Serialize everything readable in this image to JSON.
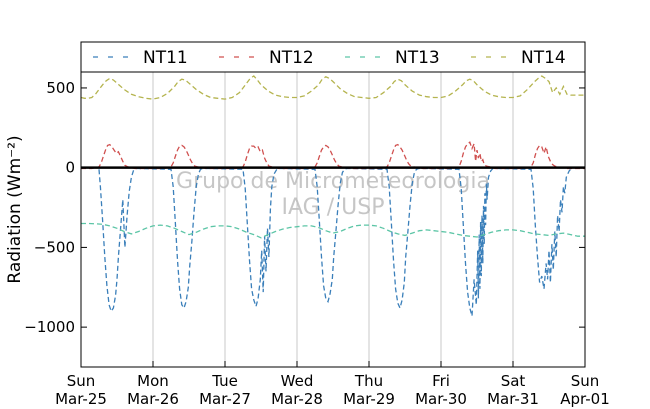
{
  "chart_data": {
    "type": "line",
    "ylabel": "Radiation (Wm⁻²)",
    "ylim": [
      -1250,
      600
    ],
    "xlim": [
      0,
      7
    ],
    "yticks": [
      500,
      0,
      -500,
      -1000
    ],
    "xticks": [
      {
        "x": 0,
        "day": "Sun",
        "date": "Mar-25"
      },
      {
        "x": 1,
        "day": "Mon",
        "date": "Mar-26"
      },
      {
        "x": 2,
        "day": "Tue",
        "date": "Mar-27"
      },
      {
        "x": 3,
        "day": "Wed",
        "date": "Mar-28"
      },
      {
        "x": 4,
        "day": "Thu",
        "date": "Mar-29"
      },
      {
        "x": 5,
        "day": "Fri",
        "date": "Mar-30"
      },
      {
        "x": 6,
        "day": "Sat",
        "date": "Mar-31"
      },
      {
        "x": 7,
        "day": "Sun",
        "date": "Apr-01"
      }
    ],
    "grid": "vertical",
    "legend": {
      "position": "top",
      "columns": 4
    },
    "watermark": [
      "Grupo de Micrometeorologia",
      "IAG / USP"
    ],
    "zero_line": true,
    "series": [
      {
        "name": "NT11",
        "color": "#3a7fba",
        "x": [
          0.25,
          0.27,
          0.3,
          0.33,
          0.36,
          0.39,
          0.42,
          0.45,
          0.48,
          0.5,
          0.52,
          0.55,
          0.58,
          0.61,
          0.64,
          0.67,
          0.7,
          0.73,
          0.76,
          0.8,
          1.25,
          1.28,
          1.31,
          1.34,
          1.37,
          1.4,
          1.43,
          1.46,
          1.49,
          1.51,
          1.54,
          1.57,
          1.6,
          1.63,
          1.66,
          1.69,
          1.72,
          1.76,
          1.8,
          2.25,
          2.28,
          2.31,
          2.34,
          2.37,
          2.4,
          2.43,
          2.46,
          2.49,
          2.51,
          2.53,
          2.55,
          2.57,
          2.59,
          2.61,
          2.63,
          2.65,
          2.68,
          2.72,
          2.76,
          2.8,
          3.25,
          3.28,
          3.31,
          3.34,
          3.37,
          3.4,
          3.43,
          3.46,
          3.49,
          3.51,
          3.54,
          3.57,
          3.6,
          3.63,
          3.66,
          3.69,
          3.72,
          3.76,
          3.8,
          4.25,
          4.28,
          4.31,
          4.34,
          4.37,
          4.4,
          4.43,
          4.46,
          4.49,
          4.51,
          4.54,
          4.57,
          4.6,
          4.63,
          4.66,
          4.69,
          4.72,
          4.76,
          4.8,
          5.25,
          5.28,
          5.31,
          5.34,
          5.37,
          5.4,
          5.43,
          5.46,
          5.49,
          5.51,
          5.52,
          5.53,
          5.54,
          5.55,
          5.56,
          5.57,
          5.58,
          5.59,
          5.6,
          5.61,
          5.62,
          5.63,
          5.64,
          5.66,
          5.69,
          5.72,
          5.76,
          5.8,
          6.25,
          6.28,
          6.31,
          6.34,
          6.37,
          6.4,
          6.43,
          6.46,
          6.48,
          6.5,
          6.52,
          6.54,
          6.56,
          6.58,
          6.6,
          6.62,
          6.64,
          6.66,
          6.68,
          6.7,
          6.72,
          6.74,
          6.76,
          6.78,
          6.8
        ],
        "y": [
          -10,
          -120,
          -330,
          -560,
          -740,
          -860,
          -900,
          -880,
          -800,
          -700,
          -560,
          -380,
          -200,
          -500,
          -300,
          -150,
          -60,
          -15,
          -5,
          -5,
          -10,
          -120,
          -340,
          -580,
          -760,
          -860,
          -880,
          -840,
          -750,
          -620,
          -460,
          -280,
          -120,
          -40,
          -10,
          -5,
          -5,
          -5,
          -5,
          -10,
          -130,
          -350,
          -580,
          -760,
          -830,
          -870,
          -820,
          -700,
          -520,
          -780,
          -430,
          -650,
          -380,
          -560,
          -260,
          -120,
          -40,
          -10,
          -5,
          -5,
          -10,
          -120,
          -330,
          -560,
          -740,
          -820,
          -840,
          -790,
          -700,
          -560,
          -400,
          -240,
          -100,
          -30,
          -10,
          -5,
          -5,
          -5,
          -5,
          -10,
          -120,
          -340,
          -580,
          -760,
          -850,
          -880,
          -830,
          -720,
          -560,
          -400,
          -240,
          -100,
          -30,
          -10,
          -5,
          -5,
          -5,
          -5,
          -10,
          -130,
          -360,
          -600,
          -780,
          -880,
          -930,
          -700,
          -860,
          -520,
          -820,
          -420,
          -760,
          -340,
          -680,
          -300,
          -600,
          -240,
          -480,
          -160,
          -360,
          -100,
          -200,
          -60,
          -20,
          -5,
          -5,
          -5,
          -10,
          -130,
          -360,
          -560,
          -720,
          -680,
          -760,
          -600,
          -700,
          -520,
          -720,
          -480,
          -640,
          -400,
          -560,
          -300,
          -400,
          -200,
          -280,
          -120,
          -160,
          -60,
          -40,
          -20,
          -10
        ]
      },
      {
        "name": "NT12",
        "color": "#d0504f",
        "x": [
          0,
          0.15,
          0.25,
          0.28,
          0.31,
          0.34,
          0.37,
          0.4,
          0.43,
          0.46,
          0.49,
          0.52,
          0.55,
          0.58,
          0.61,
          0.65,
          0.75,
          1.0,
          1.15,
          1.25,
          1.28,
          1.31,
          1.34,
          1.37,
          1.4,
          1.43,
          1.46,
          1.49,
          1.52,
          1.55,
          1.58,
          1.62,
          1.75,
          2.0,
          2.15,
          2.25,
          2.28,
          2.31,
          2.34,
          2.37,
          2.4,
          2.43,
          2.46,
          2.49,
          2.52,
          2.55,
          2.58,
          2.61,
          2.65,
          2.75,
          3.0,
          3.15,
          3.25,
          3.28,
          3.31,
          3.34,
          3.37,
          3.4,
          3.43,
          3.46,
          3.49,
          3.52,
          3.55,
          3.58,
          3.62,
          3.75,
          4.0,
          4.15,
          4.25,
          4.28,
          4.31,
          4.34,
          4.37,
          4.4,
          4.43,
          4.46,
          4.49,
          4.52,
          4.55,
          4.58,
          4.62,
          4.75,
          5.0,
          5.15,
          5.25,
          5.28,
          5.31,
          5.34,
          5.37,
          5.4,
          5.43,
          5.46,
          5.48,
          5.5,
          5.52,
          5.54,
          5.56,
          5.58,
          5.6,
          5.63,
          5.68,
          5.75,
          6.0,
          6.15,
          6.25,
          6.28,
          6.31,
          6.34,
          6.37,
          6.4,
          6.43,
          6.46,
          6.49,
          6.52,
          6.55,
          6.58,
          6.62,
          6.75,
          7.0
        ],
        "y": [
          -5,
          -5,
          5,
          30,
          70,
          110,
          140,
          145,
          130,
          110,
          90,
          100,
          70,
          40,
          15,
          5,
          -5,
          -5,
          -5,
          5,
          30,
          70,
          110,
          135,
          140,
          130,
          110,
          80,
          50,
          25,
          10,
          5,
          -5,
          -5,
          -5,
          5,
          35,
          80,
          120,
          135,
          135,
          120,
          130,
          100,
          110,
          60,
          30,
          10,
          5,
          -5,
          -5,
          -5,
          5,
          30,
          70,
          110,
          130,
          140,
          130,
          110,
          80,
          50,
          25,
          10,
          5,
          -5,
          -5,
          -5,
          5,
          30,
          70,
          110,
          140,
          145,
          130,
          110,
          80,
          50,
          25,
          10,
          5,
          -5,
          -5,
          -5,
          5,
          40,
          90,
          130,
          150,
          160,
          120,
          150,
          40,
          110,
          60,
          90,
          40,
          50,
          20,
          10,
          5,
          -5,
          -5,
          -5,
          5,
          30,
          80,
          120,
          140,
          130,
          90,
          130,
          70,
          40,
          20,
          10,
          5,
          -5,
          -5
        ]
      },
      {
        "name": "NT13",
        "color": "#5cc5a6",
        "x": [
          0,
          0.1,
          0.2,
          0.3,
          0.4,
          0.5,
          0.6,
          0.7,
          0.8,
          0.9,
          1.0,
          1.1,
          1.2,
          1.3,
          1.4,
          1.5,
          1.6,
          1.7,
          1.8,
          1.9,
          2.0,
          2.1,
          2.2,
          2.3,
          2.4,
          2.5,
          2.6,
          2.7,
          2.8,
          2.9,
          3.0,
          3.1,
          3.2,
          3.3,
          3.4,
          3.5,
          3.6,
          3.7,
          3.8,
          3.9,
          4.0,
          4.1,
          4.2,
          4.3,
          4.4,
          4.5,
          4.6,
          4.7,
          4.8,
          4.9,
          5.0,
          5.1,
          5.2,
          5.3,
          5.4,
          5.5,
          5.6,
          5.7,
          5.8,
          5.9,
          6.0,
          6.1,
          6.2,
          6.3,
          6.4,
          6.5,
          6.6,
          6.7,
          6.8,
          6.9,
          7.0
        ],
        "y": [
          -350,
          -350,
          -352,
          -355,
          -365,
          -380,
          -400,
          -415,
          -400,
          -380,
          -365,
          -360,
          -365,
          -380,
          -400,
          -420,
          -405,
          -385,
          -370,
          -365,
          -365,
          -370,
          -385,
          -405,
          -420,
          -440,
          -420,
          -400,
          -385,
          -375,
          -370,
          -365,
          -365,
          -375,
          -395,
          -410,
          -400,
          -380,
          -365,
          -360,
          -360,
          -365,
          -380,
          -400,
          -415,
          -425,
          -410,
          -395,
          -390,
          -395,
          -400,
          -405,
          -415,
          -425,
          -430,
          -435,
          -420,
          -405,
          -395,
          -390,
          -390,
          -395,
          -405,
          -415,
          -420,
          -425,
          -415,
          -410,
          -420,
          -430,
          -430
        ]
      },
      {
        "name": "NT14",
        "color": "#b5b44f",
        "x": [
          0,
          0.05,
          0.1,
          0.15,
          0.2,
          0.25,
          0.3,
          0.35,
          0.4,
          0.45,
          0.5,
          0.6,
          0.7,
          0.8,
          0.9,
          1.0,
          1.1,
          1.2,
          1.3,
          1.35,
          1.4,
          1.45,
          1.5,
          1.6,
          1.7,
          1.8,
          1.9,
          2.0,
          2.1,
          2.2,
          2.3,
          2.35,
          2.4,
          2.45,
          2.5,
          2.6,
          2.7,
          2.8,
          2.9,
          3.0,
          3.1,
          3.2,
          3.3,
          3.35,
          3.4,
          3.45,
          3.5,
          3.6,
          3.7,
          3.8,
          3.9,
          4.0,
          4.1,
          4.2,
          4.3,
          4.35,
          4.4,
          4.45,
          4.5,
          4.6,
          4.7,
          4.8,
          4.9,
          5.0,
          5.1,
          5.2,
          5.3,
          5.35,
          5.4,
          5.45,
          5.5,
          5.6,
          5.7,
          5.8,
          5.9,
          6.0,
          6.1,
          6.2,
          6.3,
          6.35,
          6.4,
          6.45,
          6.5,
          6.55,
          6.6,
          6.65,
          6.7,
          6.75,
          6.8,
          6.9,
          7.0
        ],
        "y": [
          440,
          435,
          435,
          440,
          460,
          490,
          520,
          545,
          560,
          550,
          530,
          490,
          460,
          445,
          435,
          430,
          440,
          465,
          510,
          540,
          555,
          550,
          530,
          490,
          460,
          440,
          435,
          430,
          440,
          470,
          530,
          560,
          575,
          550,
          520,
          480,
          455,
          445,
          440,
          440,
          450,
          480,
          520,
          555,
          570,
          560,
          540,
          495,
          465,
          445,
          440,
          435,
          440,
          470,
          510,
          540,
          555,
          545,
          520,
          480,
          455,
          445,
          440,
          440,
          450,
          480,
          520,
          545,
          555,
          545,
          520,
          480,
          455,
          445,
          440,
          440,
          450,
          490,
          540,
          560,
          575,
          560,
          540,
          470,
          500,
          460,
          510,
          460,
          455,
          455,
          455
        ]
      }
    ]
  }
}
